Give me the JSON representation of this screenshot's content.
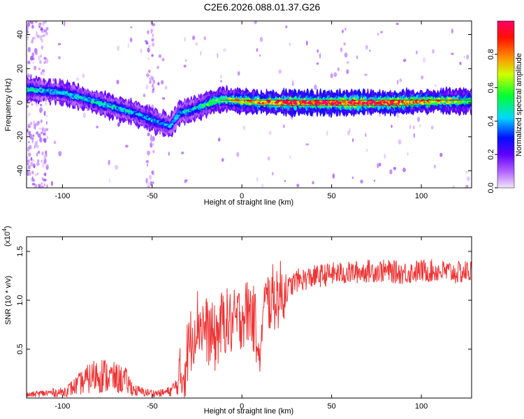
{
  "title": "C2E6.2026.088.01.37.G26",
  "chart_data": [
    {
      "type": "heatmap",
      "xlabel": "Height of straight line (km)",
      "ylabel": "Frequency (Hz)",
      "xlim": [
        -120,
        128
      ],
      "ylim": [
        -50,
        48
      ],
      "xticks": [
        "-100",
        "-50",
        "0",
        "50",
        "100"
      ],
      "yticks": [
        "40",
        "20",
        "0",
        "-20",
        "-40"
      ],
      "colorbar": {
        "label": "Normalized spectral amplitude",
        "range": [
          0.0,
          1.0
        ],
        "ticks": [
          "0.0",
          "0.2",
          "0.4",
          "0.6",
          "0.8"
        ],
        "colors": [
          "#f2e6ff",
          "#7a00ff",
          "#0000ff",
          "#00e5ff",
          "#00ff00",
          "#ffff00",
          "#ff8000",
          "#ff0000",
          "#ff0066"
        ]
      },
      "ridge": {
        "x": [
          -120,
          -100,
          -80,
          -60,
          -50,
          -40,
          -35,
          -30,
          -25,
          -20,
          -15,
          -10,
          0,
          20,
          50,
          80,
          110,
          128
        ],
        "frequency": [
          8,
          6,
          0,
          -6,
          -10,
          -14,
          -6,
          -5,
          -3,
          -1,
          1,
          2,
          1,
          0,
          0,
          0,
          1,
          1
        ],
        "amplitude": [
          0.45,
          0.4,
          0.45,
          0.4,
          0.4,
          0.35,
          0.4,
          0.4,
          0.45,
          0.5,
          0.55,
          0.6,
          0.7,
          0.9,
          0.95,
          0.95,
          0.75,
          0.6
        ]
      }
    },
    {
      "type": "line",
      "xlabel": "Height of straight line (km)",
      "ylabel": "SNR (10 * v/v)",
      "y_scale_label": "(x10",
      "y_scale_exponent": "4",
      "xlim": [
        -120,
        128
      ],
      "ylim": [
        0,
        1.65
      ],
      "xticks": [
        "-100",
        "-50",
        "0",
        "50",
        "100"
      ],
      "yticks": [
        "1.5",
        "1.0",
        "0.5"
      ],
      "color": "#ee3333",
      "series": [
        {
          "x": [
            -120,
            -110,
            -100,
            -95,
            -90,
            -85,
            -80,
            -75,
            -70,
            -65,
            -60,
            -55,
            -50,
            -45,
            -40,
            -35,
            -32,
            -30,
            -25,
            -20,
            -15,
            -10,
            -5,
            0,
            5,
            8,
            10,
            12,
            15,
            20,
            25,
            30,
            35,
            40,
            50,
            60,
            70,
            80,
            90,
            100,
            110,
            120,
            128
          ],
          "y": [
            0.03,
            0.05,
            0.06,
            0.1,
            0.15,
            0.2,
            0.25,
            0.22,
            0.2,
            0.18,
            0.08,
            0.06,
            0.05,
            0.05,
            0.07,
            0.15,
            0.3,
            0.5,
            0.8,
            0.7,
            0.6,
            0.8,
            0.75,
            0.85,
            0.9,
            0.7,
            0.35,
            0.9,
            1.0,
            1.05,
            1.1,
            1.2,
            1.22,
            1.24,
            1.27,
            1.28,
            1.3,
            1.3,
            1.28,
            1.3,
            1.3,
            1.28,
            1.3
          ]
        }
      ]
    }
  ]
}
